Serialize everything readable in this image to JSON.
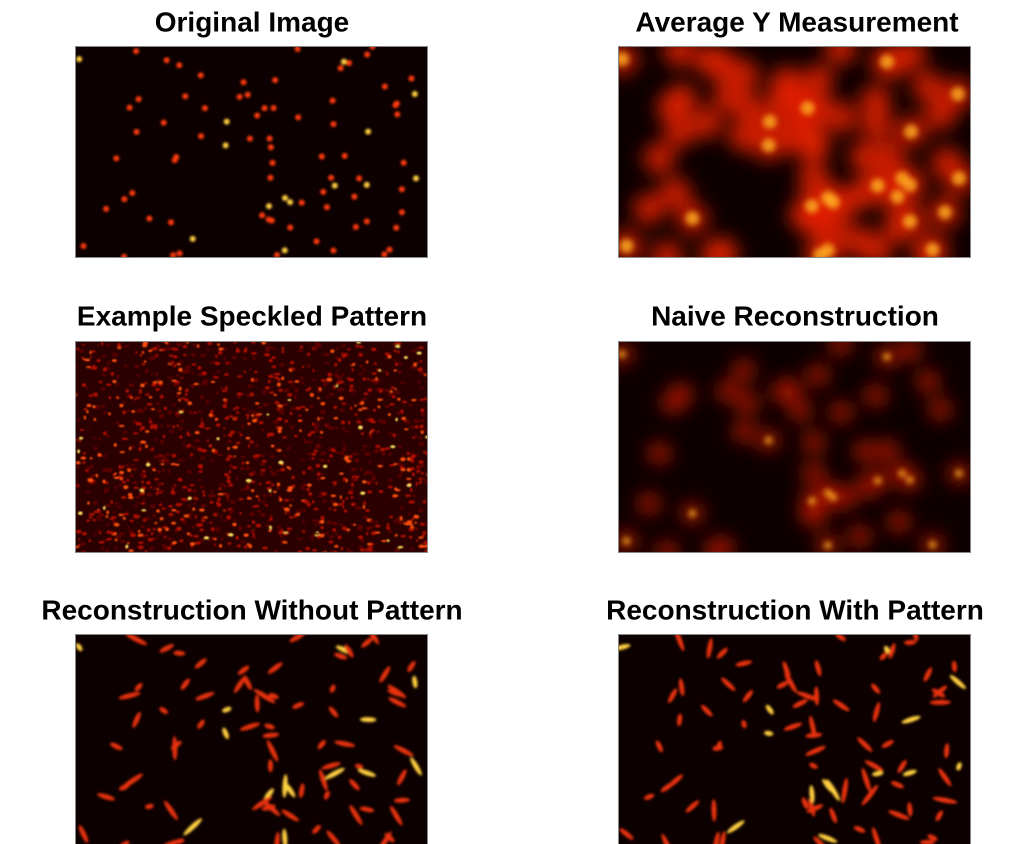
{
  "panels": [
    {
      "title": "Original Image"
    },
    {
      "title": "Average Y Measurement"
    },
    {
      "title": "Example Speckled Pattern"
    },
    {
      "title": "Naive Reconstruction"
    },
    {
      "title": "Reconstruction Without Pattern"
    },
    {
      "title": "Reconstruction With Pattern"
    }
  ]
}
